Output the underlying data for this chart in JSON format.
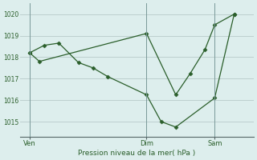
{
  "background_color": "#ddeeed",
  "plot_bg_color": "#ddeeed",
  "grid_color": "#bccfcf",
  "line_color": "#2a5e2a",
  "marker_color": "#2a5e2a",
  "xlabel": "Pression niveau de la mer( hPa )",
  "xlabel_color": "#2a5e2a",
  "yticks": [
    1015,
    1016,
    1017,
    1018,
    1019,
    1020
  ],
  "ylim": [
    1014.3,
    1020.5
  ],
  "xlim": [
    0,
    24
  ],
  "xtick_labels": [
    "Ven",
    "Dim",
    "Sam"
  ],
  "xtick_positions": [
    1,
    13,
    20
  ],
  "vline_positions": [
    1,
    13,
    20
  ],
  "series1_x": [
    1,
    2.5,
    4,
    6,
    7.5,
    9,
    13,
    14.5,
    16,
    20,
    22
  ],
  "series1_y": [
    1018.2,
    1018.55,
    1018.65,
    1017.75,
    1017.5,
    1017.1,
    1016.25,
    1015.0,
    1014.75,
    1016.1,
    1020.0
  ],
  "series2_x": [
    1,
    2,
    13,
    16,
    17.5,
    19,
    20,
    22
  ],
  "series2_y": [
    1018.2,
    1017.8,
    1019.1,
    1016.25,
    1017.25,
    1018.35,
    1019.5,
    1020.0
  ],
  "figsize": [
    3.2,
    2.0
  ],
  "dpi": 100
}
